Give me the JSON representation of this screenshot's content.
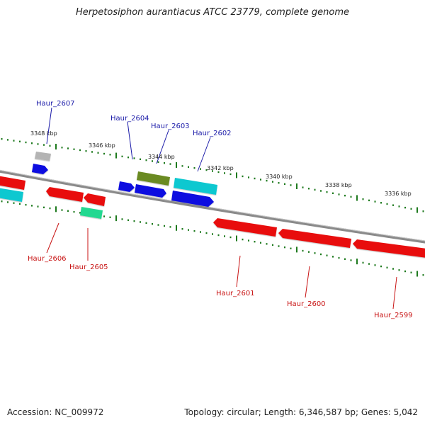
{
  "title": "Herpetosiphon aurantiacus ATCC 23779, complete genome",
  "accession_text": "Accession: NC_009972",
  "topology_text": "Topology: circular; Length: 6,346,587 bp; Genes: 5,042",
  "colors": {
    "backbone": "#8a8a8a",
    "tick": "#1e7a1e",
    "label_forward": "#1a1aa8",
    "label_reverse": "#c81414",
    "red": "#e81010",
    "blue": "#1010e0",
    "cyan": "#10c8d0",
    "olive": "#6b8a20",
    "gray": "#b4b4b4",
    "teal_green": "#20d890"
  },
  "scale_labels": [
    "3348 kbp",
    "3346 kbp",
    "3344 kbp",
    "3342 kbp",
    "3340 kbp",
    "3338 kbp",
    "3336 kbp"
  ],
  "gene_labels": {
    "forward": [
      "Haur_2607",
      "Haur_2604",
      "Haur_2603",
      "Haur_2602"
    ],
    "reverse": [
      "Haur_2606",
      "Haur_2605",
      "Haur_2601",
      "Haur_2600",
      "Haur_2599"
    ]
  }
}
